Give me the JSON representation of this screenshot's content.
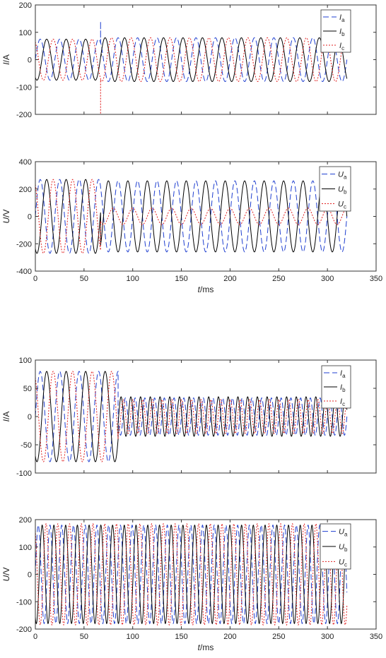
{
  "chart_data": [
    {
      "type": "line",
      "xlim": [
        0,
        350
      ],
      "ylim": [
        -200,
        200
      ],
      "x_ticks": [
        0,
        50,
        100,
        150,
        200,
        250,
        300,
        350
      ],
      "y_ticks": [
        200,
        100,
        0,
        -100,
        -200
      ],
      "x_tick_labels": [
        "",
        "",
        "",
        "",
        "",
        "",
        "",
        ""
      ],
      "y_tick_labels": [
        "200",
        "100",
        "0",
        "-100",
        "-200"
      ],
      "xlabel": {
        "var": "",
        "unit": ""
      },
      "ylabel": {
        "var": "I",
        "unit": "/A"
      },
      "legend_position": "top-right",
      "grid": false,
      "series": [
        {
          "name": "I",
          "sub": "a",
          "color": "#1f3fd0",
          "dash": "8,4",
          "x_range": [
            0,
            320
          ],
          "segments": [
            {
              "x_start": 0,
              "x_end": 67,
              "amplitude": 75,
              "freq_hz": 50,
              "phase_deg": 0
            },
            {
              "x_start": 67,
              "x_end": 320,
              "amplitude": 80,
              "freq_hz": 50,
              "phase_deg": 0
            }
          ],
          "spike": {
            "x": 67,
            "value": 140
          }
        },
        {
          "name": "I",
          "sub": "b",
          "color": "#000000",
          "dash": "",
          "x_range": [
            0,
            320
          ],
          "segments": [
            {
              "x_start": 0,
              "x_end": 67,
              "amplitude": 75,
              "freq_hz": 50,
              "phase_deg": -120
            },
            {
              "x_start": 67,
              "x_end": 320,
              "amplitude": 80,
              "freq_hz": 50,
              "phase_deg": -120
            }
          ],
          "spike": {
            "x": 68,
            "value": 20
          }
        },
        {
          "name": "I",
          "sub": "c",
          "color": "#e02020",
          "dash": "2,2",
          "x_range": [
            0,
            320
          ],
          "segments": [
            {
              "x_start": 0,
              "x_end": 67,
              "amplitude": 75,
              "freq_hz": 50,
              "phase_deg": 120
            },
            {
              "x_start": 67,
              "x_end": 320,
              "amplitude": 80,
              "freq_hz": 50,
              "phase_deg": 120
            }
          ],
          "spike": {
            "x": 67,
            "value": -230
          }
        }
      ]
    },
    {
      "type": "line",
      "xlim": [
        0,
        350
      ],
      "ylim": [
        -400,
        400
      ],
      "x_ticks": [
        0,
        50,
        100,
        150,
        200,
        250,
        300,
        350
      ],
      "y_ticks": [
        400,
        200,
        0,
        -200,
        -400
      ],
      "x_tick_labels": [
        "0",
        "50",
        "100",
        "150",
        "200",
        "250",
        "300",
        "350"
      ],
      "y_tick_labels": [
        "400",
        "200",
        "0",
        "-200",
        "-400"
      ],
      "xlabel": {
        "var": "t",
        "unit": "/ms"
      },
      "ylabel": {
        "var": "U",
        "unit": "/V"
      },
      "legend_position": "top-right",
      "grid": false,
      "series": [
        {
          "name": "U",
          "sub": "a",
          "color": "#1f3fd0",
          "dash": "8,4",
          "x_range": [
            0,
            320
          ],
          "segments": [
            {
              "x_start": 0,
              "x_end": 67,
              "amplitude": 270,
              "freq_hz": 50,
              "phase_deg": 0
            },
            {
              "x_start": 67,
              "x_end": 320,
              "amplitude": 260,
              "freq_hz": 50,
              "phase_deg": 0
            }
          ]
        },
        {
          "name": "U",
          "sub": "b",
          "color": "#000000",
          "dash": "",
          "x_range": [
            0,
            320
          ],
          "segments": [
            {
              "x_start": 0,
              "x_end": 67,
              "amplitude": 270,
              "freq_hz": 50,
              "phase_deg": -120
            },
            {
              "x_start": 67,
              "x_end": 320,
              "amplitude": 260,
              "freq_hz": 50,
              "phase_deg": 180
            }
          ]
        },
        {
          "name": "U",
          "sub": "c",
          "color": "#e02020",
          "dash": "2,2",
          "x_range": [
            0,
            320
          ],
          "segments": [
            {
              "x_start": 0,
              "x_end": 67,
              "amplitude": 270,
              "freq_hz": 50,
              "phase_deg": 120
            },
            {
              "x_start": 67,
              "x_end": 320,
              "amplitude": 60,
              "freq_hz": 50,
              "phase_deg": 90
            }
          ]
        }
      ]
    },
    {
      "type": "line",
      "xlim": [
        0,
        350
      ],
      "ylim": [
        -100,
        100
      ],
      "x_ticks": [
        0,
        50,
        100,
        150,
        200,
        250,
        300,
        350
      ],
      "y_ticks": [
        100,
        50,
        0,
        -50,
        -100
      ],
      "x_tick_labels": [
        "",
        "",
        "",
        "",
        "",
        "",
        "",
        ""
      ],
      "y_tick_labels": [
        "100",
        "50",
        "0",
        "-50",
        "-100"
      ],
      "xlabel": {
        "var": "",
        "unit": ""
      },
      "ylabel": {
        "var": "I",
        "unit": "/A"
      },
      "legend_position": "top-right",
      "grid": false,
      "series": [
        {
          "name": "I",
          "sub": "a",
          "color": "#1f3fd0",
          "dash": "8,4",
          "x_range": [
            0,
            320
          ],
          "segments": [
            {
              "x_start": 0,
              "x_end": 85,
              "amplitude": 80,
              "freq_hz": 50,
              "phase_deg": 0
            },
            {
              "x_start": 85,
              "x_end": 320,
              "amplitude": 33,
              "freq_hz": 100,
              "phase_deg": 0
            }
          ]
        },
        {
          "name": "I",
          "sub": "b",
          "color": "#000000",
          "dash": "",
          "x_range": [
            0,
            320
          ],
          "segments": [
            {
              "x_start": 0,
              "x_end": 85,
              "amplitude": 80,
              "freq_hz": 50,
              "phase_deg": -120
            },
            {
              "x_start": 85,
              "x_end": 320,
              "amplitude": 35,
              "freq_hz": 100,
              "phase_deg": 160
            }
          ]
        },
        {
          "name": "I",
          "sub": "c",
          "color": "#e02020",
          "dash": "2,2",
          "x_range": [
            0,
            320
          ],
          "segments": [
            {
              "x_start": 0,
              "x_end": 85,
              "amplitude": 80,
              "freq_hz": 50,
              "phase_deg": 120
            },
            {
              "x_start": 85,
              "x_end": 320,
              "amplitude": 30,
              "freq_hz": 100,
              "phase_deg": 80
            }
          ]
        }
      ]
    },
    {
      "type": "line",
      "xlim": [
        0,
        350
      ],
      "ylim": [
        -200,
        200
      ],
      "x_ticks": [
        0,
        50,
        100,
        150,
        200,
        250,
        300,
        350
      ],
      "y_ticks": [
        200,
        100,
        0,
        -100,
        -200
      ],
      "x_tick_labels": [
        "0",
        "50",
        "100",
        "150",
        "200",
        "250",
        "300",
        "350"
      ],
      "y_tick_labels": [
        "200",
        "100",
        "0",
        "-100",
        "-200"
      ],
      "xlabel": {
        "var": "t",
        "unit": "/ms"
      },
      "ylabel": {
        "var": "U",
        "unit": "/V"
      },
      "legend_position": "top-right",
      "grid": false,
      "series": [
        {
          "name": "U",
          "sub": "a",
          "color": "#1f3fd0",
          "dash": "8,4",
          "x_range": [
            0,
            320
          ],
          "segments": [
            {
              "x_start": 0,
              "x_end": 320,
              "amplitude": 180,
              "freq_hz": 83,
              "phase_deg": 0
            }
          ]
        },
        {
          "name": "U",
          "sub": "b",
          "color": "#000000",
          "dash": "",
          "x_range": [
            0,
            320
          ],
          "segments": [
            {
              "x_start": 0,
              "x_end": 320,
              "amplitude": 180,
              "freq_hz": 83,
              "phase_deg": -120
            }
          ]
        },
        {
          "name": "U",
          "sub": "c",
          "color": "#e02020",
          "dash": "2,2",
          "x_range": [
            0,
            320
          ],
          "segments": [
            {
              "x_start": 0,
              "x_end": 320,
              "amplitude": 185,
              "freq_hz": 83,
              "phase_deg": 120
            }
          ]
        }
      ]
    }
  ]
}
